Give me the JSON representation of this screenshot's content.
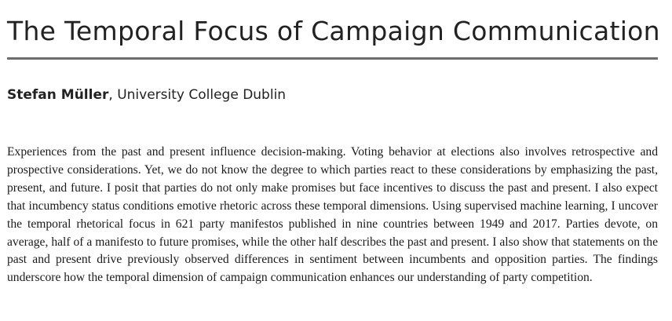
{
  "paper": {
    "title": "The Temporal Focus of Campaign Communication",
    "author": {
      "name": "Stefan Müller",
      "separator": ",",
      "affiliation": "University College Dublin"
    },
    "abstract": "Experiences from the past and present influence decision-making. Voting behavior at elections also involves retrospective and prospective considerations. Yet, we do not know the degree to which parties react to these considerations by emphasizing the past, present, and future. I posit that parties do not only make promises but face incentives to discuss the past and present. I also expect that incumbency status conditions emotive rhetoric across these temporal dimensions. Using supervised machine learning, I uncover the temporal rhetorical focus in 621 party manifestos published in nine countries between 1949 and 2017. Parties devote, on average, half of a manifesto to future promises, while the other half describes the past and present. I also show that statements on the past and present drive previously observed differences in sentiment between incumbents and opposition parties. The findings underscore how the temporal dimension of campaign communication enhances our un­derstanding of party competition."
  }
}
